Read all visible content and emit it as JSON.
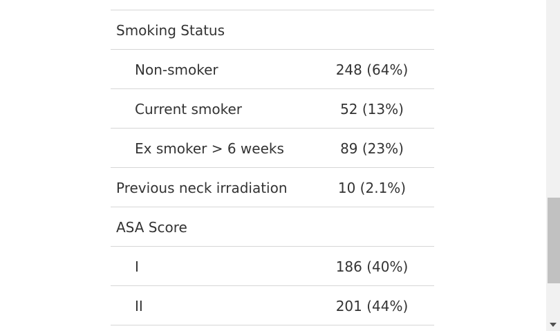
{
  "table": {
    "rows": [
      {
        "label": "Smoking Status",
        "value": ""
      },
      {
        "label": "Non-smoker",
        "value": "248 (64%)"
      },
      {
        "label": "Current smoker",
        "value": "52 (13%)"
      },
      {
        "label": "Ex smoker > 6 weeks",
        "value": "89 (23%)"
      },
      {
        "label": "Previous neck irradiation",
        "value": "10 (2.1%)"
      },
      {
        "label": "ASA Score",
        "value": ""
      },
      {
        "label": "I",
        "value": "186 (40%)"
      },
      {
        "label": "II",
        "value": "201 (44%)"
      }
    ]
  },
  "scrollbar": {
    "icons": {
      "down": "chevron-down-icon"
    }
  }
}
